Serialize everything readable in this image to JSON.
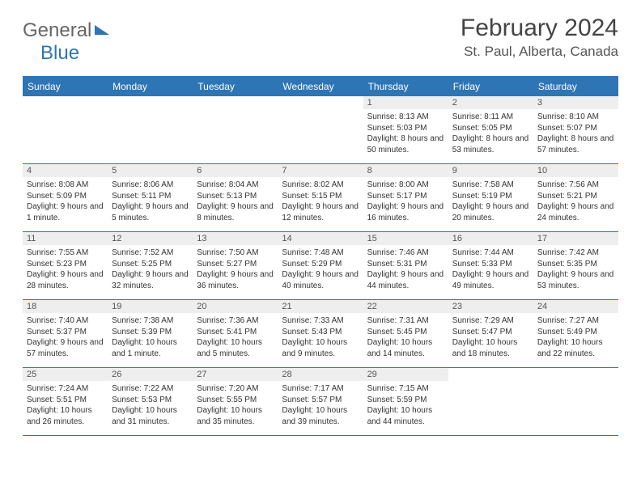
{
  "brand": {
    "text1": "General",
    "text2": "Blue"
  },
  "title": "February 2024",
  "location": "St. Paul, Alberta, Canada",
  "colors": {
    "accent": "#2e75b6",
    "daynum_bg": "#eeeeee",
    "text": "#333333"
  },
  "days_of_week": [
    "Sunday",
    "Monday",
    "Tuesday",
    "Wednesday",
    "Thursday",
    "Friday",
    "Saturday"
  ],
  "weeks": [
    [
      null,
      null,
      null,
      null,
      {
        "n": "1",
        "sr": "8:13 AM",
        "ss": "5:03 PM",
        "dl": "8 hours and 50 minutes."
      },
      {
        "n": "2",
        "sr": "8:11 AM",
        "ss": "5:05 PM",
        "dl": "8 hours and 53 minutes."
      },
      {
        "n": "3",
        "sr": "8:10 AM",
        "ss": "5:07 PM",
        "dl": "8 hours and 57 minutes."
      }
    ],
    [
      {
        "n": "4",
        "sr": "8:08 AM",
        "ss": "5:09 PM",
        "dl": "9 hours and 1 minute."
      },
      {
        "n": "5",
        "sr": "8:06 AM",
        "ss": "5:11 PM",
        "dl": "9 hours and 5 minutes."
      },
      {
        "n": "6",
        "sr": "8:04 AM",
        "ss": "5:13 PM",
        "dl": "9 hours and 8 minutes."
      },
      {
        "n": "7",
        "sr": "8:02 AM",
        "ss": "5:15 PM",
        "dl": "9 hours and 12 minutes."
      },
      {
        "n": "8",
        "sr": "8:00 AM",
        "ss": "5:17 PM",
        "dl": "9 hours and 16 minutes."
      },
      {
        "n": "9",
        "sr": "7:58 AM",
        "ss": "5:19 PM",
        "dl": "9 hours and 20 minutes."
      },
      {
        "n": "10",
        "sr": "7:56 AM",
        "ss": "5:21 PM",
        "dl": "9 hours and 24 minutes."
      }
    ],
    [
      {
        "n": "11",
        "sr": "7:55 AM",
        "ss": "5:23 PM",
        "dl": "9 hours and 28 minutes."
      },
      {
        "n": "12",
        "sr": "7:52 AM",
        "ss": "5:25 PM",
        "dl": "9 hours and 32 minutes."
      },
      {
        "n": "13",
        "sr": "7:50 AM",
        "ss": "5:27 PM",
        "dl": "9 hours and 36 minutes."
      },
      {
        "n": "14",
        "sr": "7:48 AM",
        "ss": "5:29 PM",
        "dl": "9 hours and 40 minutes."
      },
      {
        "n": "15",
        "sr": "7:46 AM",
        "ss": "5:31 PM",
        "dl": "9 hours and 44 minutes."
      },
      {
        "n": "16",
        "sr": "7:44 AM",
        "ss": "5:33 PM",
        "dl": "9 hours and 49 minutes."
      },
      {
        "n": "17",
        "sr": "7:42 AM",
        "ss": "5:35 PM",
        "dl": "9 hours and 53 minutes."
      }
    ],
    [
      {
        "n": "18",
        "sr": "7:40 AM",
        "ss": "5:37 PM",
        "dl": "9 hours and 57 minutes."
      },
      {
        "n": "19",
        "sr": "7:38 AM",
        "ss": "5:39 PM",
        "dl": "10 hours and 1 minute."
      },
      {
        "n": "20",
        "sr": "7:36 AM",
        "ss": "5:41 PM",
        "dl": "10 hours and 5 minutes."
      },
      {
        "n": "21",
        "sr": "7:33 AM",
        "ss": "5:43 PM",
        "dl": "10 hours and 9 minutes."
      },
      {
        "n": "22",
        "sr": "7:31 AM",
        "ss": "5:45 PM",
        "dl": "10 hours and 14 minutes."
      },
      {
        "n": "23",
        "sr": "7:29 AM",
        "ss": "5:47 PM",
        "dl": "10 hours and 18 minutes."
      },
      {
        "n": "24",
        "sr": "7:27 AM",
        "ss": "5:49 PM",
        "dl": "10 hours and 22 minutes."
      }
    ],
    [
      {
        "n": "25",
        "sr": "7:24 AM",
        "ss": "5:51 PM",
        "dl": "10 hours and 26 minutes."
      },
      {
        "n": "26",
        "sr": "7:22 AM",
        "ss": "5:53 PM",
        "dl": "10 hours and 31 minutes."
      },
      {
        "n": "27",
        "sr": "7:20 AM",
        "ss": "5:55 PM",
        "dl": "10 hours and 35 minutes."
      },
      {
        "n": "28",
        "sr": "7:17 AM",
        "ss": "5:57 PM",
        "dl": "10 hours and 39 minutes."
      },
      {
        "n": "29",
        "sr": "7:15 AM",
        "ss": "5:59 PM",
        "dl": "10 hours and 44 minutes."
      },
      null,
      null
    ]
  ]
}
